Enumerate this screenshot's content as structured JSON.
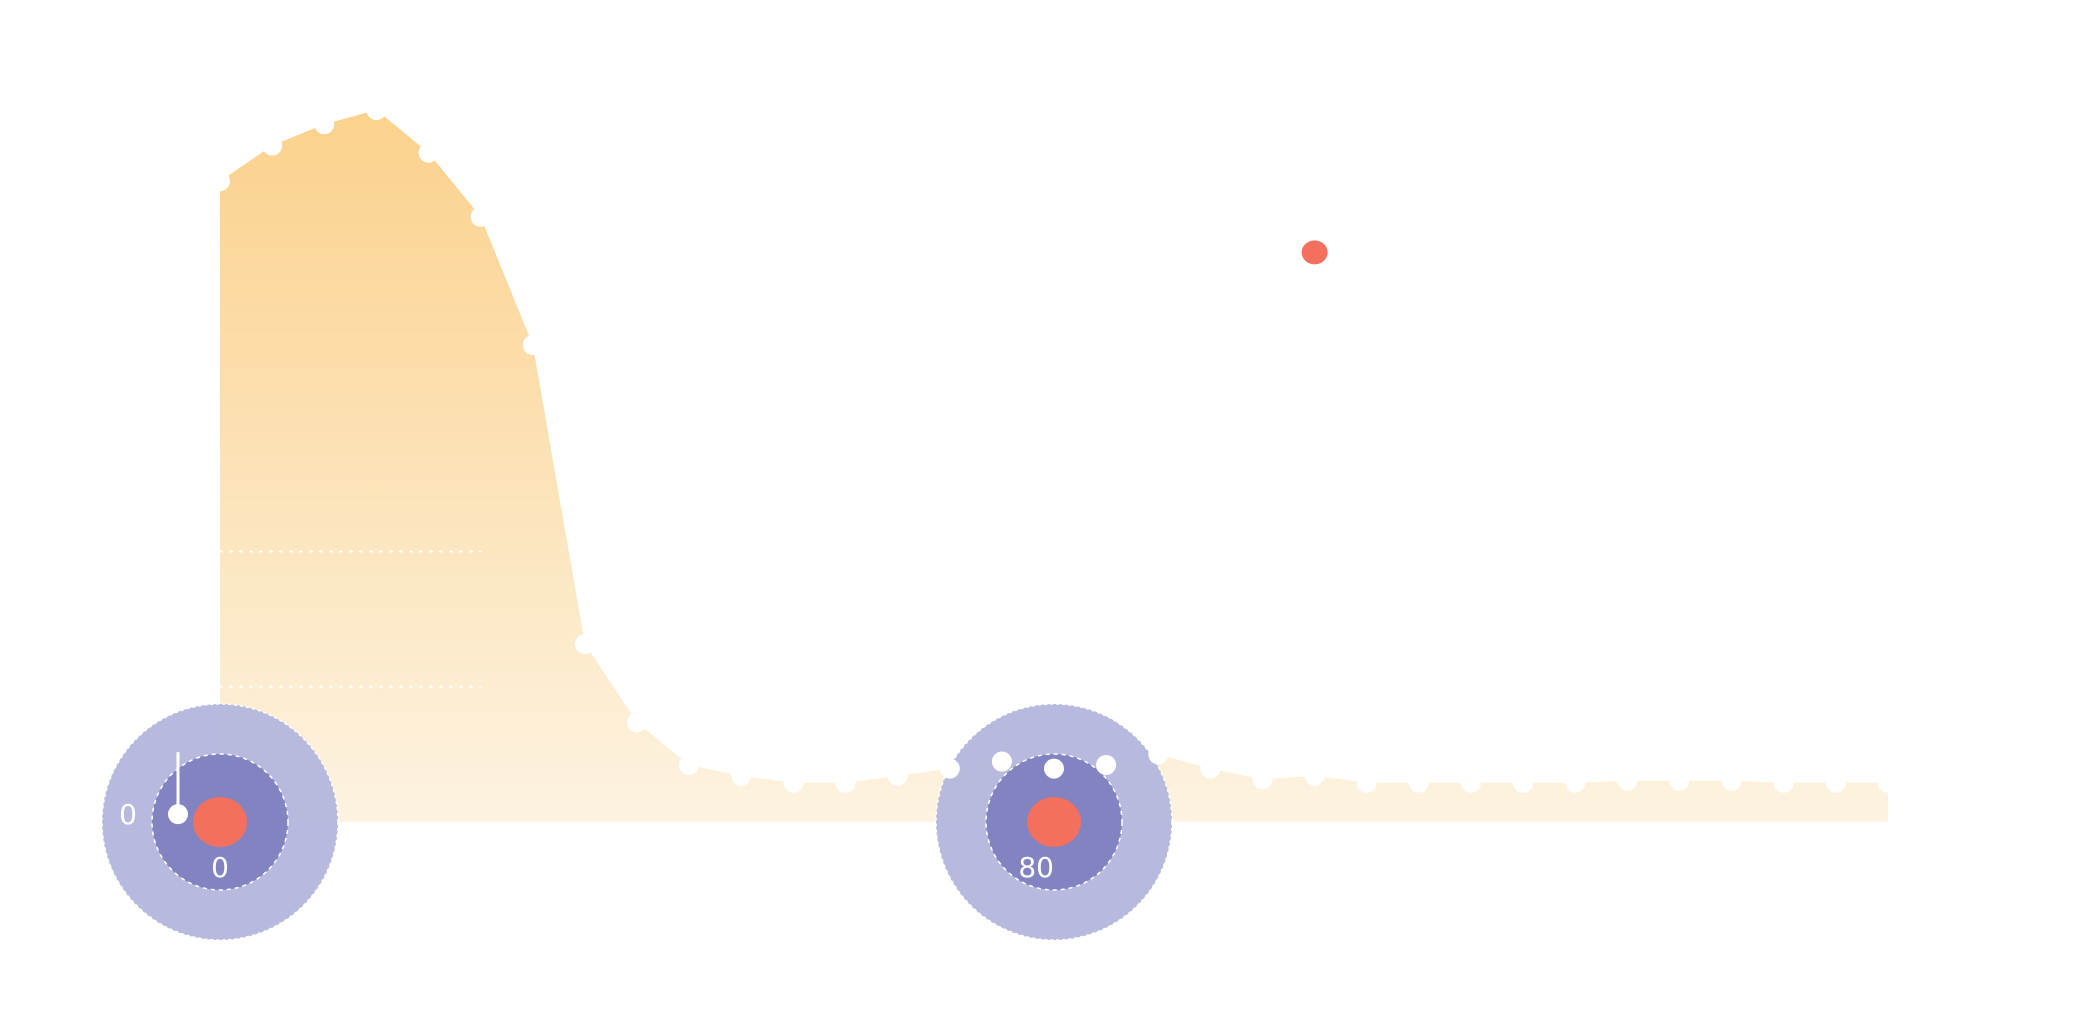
{
  "chart_data": {
    "type": "area",
    "x": [
      0,
      5,
      10,
      15,
      20,
      25,
      30,
      35,
      40,
      45,
      50,
      55,
      60,
      65,
      70,
      75,
      80,
      85,
      90,
      95,
      100,
      105,
      110,
      115,
      120,
      125,
      130,
      135,
      140,
      145,
      150,
      155,
      160
    ],
    "values": [
      90,
      95,
      98,
      100,
      94,
      85,
      67,
      25,
      14,
      8,
      6.5,
      5.5,
      5.5,
      6.5,
      7.5,
      8.5,
      7.5,
      8,
      9.5,
      7.5,
      6,
      6.5,
      5.5,
      5.5,
      5.5,
      5.5,
      5.5,
      5.8,
      5.8,
      5.8,
      5.5,
      5.5,
      5.5
    ],
    "xlim": [
      0,
      160
    ],
    "ylim": [
      0,
      100
    ],
    "reference_levels": [
      19,
      38
    ],
    "highlight_points": [
      {
        "x": 0,
        "value_label": "0",
        "side_label": "0",
        "marker_value": 7
      },
      {
        "x": 80,
        "value_label": "80",
        "side_label": "",
        "marker_value": 7
      }
    ],
    "outlier_point": {
      "x": 105,
      "y": 80
    },
    "colors": {
      "area_top": "#fbd18c",
      "area_bottom": "#fdf3e1",
      "halo_outer": "#b3b6dc",
      "halo_inner": "#7d81bf",
      "dot": "#f2705d",
      "marker": "#ffffff"
    },
    "grid": false,
    "legend": "none"
  }
}
